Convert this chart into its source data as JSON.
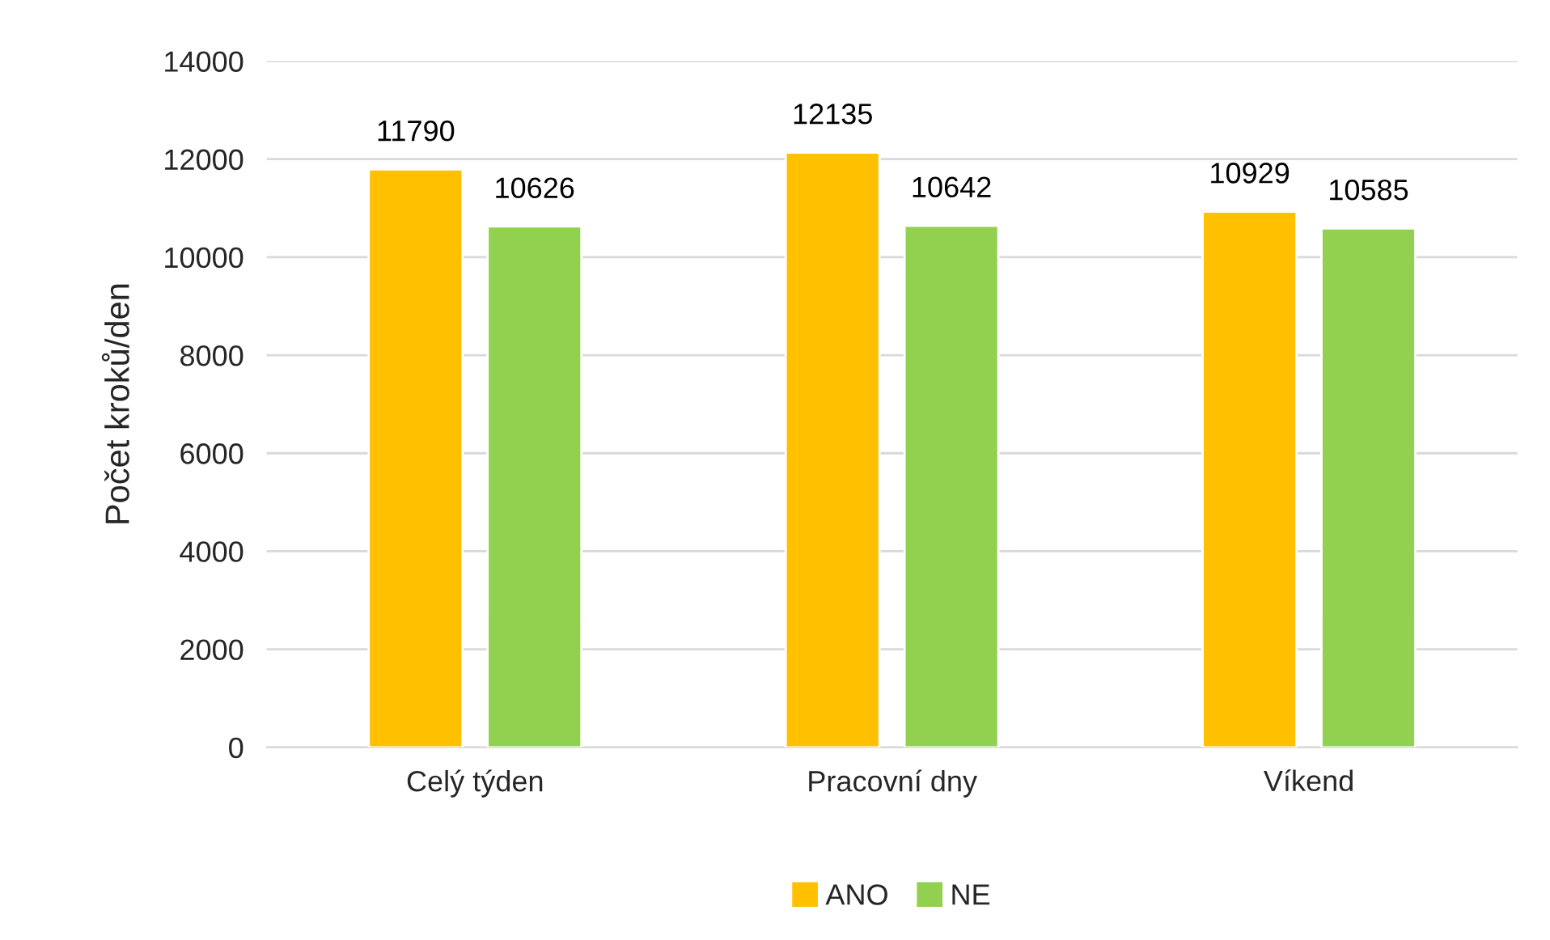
{
  "chart_data": {
    "type": "bar",
    "ylabel": "Počet kroků/den",
    "categories": [
      "Celý týden",
      "Pracovní dny",
      "Víkend"
    ],
    "series": [
      {
        "name": "ANO",
        "color": "#ffc000",
        "values": [
          11790,
          12135,
          10929
        ]
      },
      {
        "name": "NE",
        "color": "#92d050",
        "values": [
          10626,
          10642,
          10585
        ]
      }
    ],
    "ylim": [
      0,
      14000
    ],
    "yticks": [
      0,
      2000,
      4000,
      6000,
      8000,
      10000,
      12000,
      14000
    ],
    "grid": "y",
    "legend": "bottom",
    "data_labels": true
  }
}
